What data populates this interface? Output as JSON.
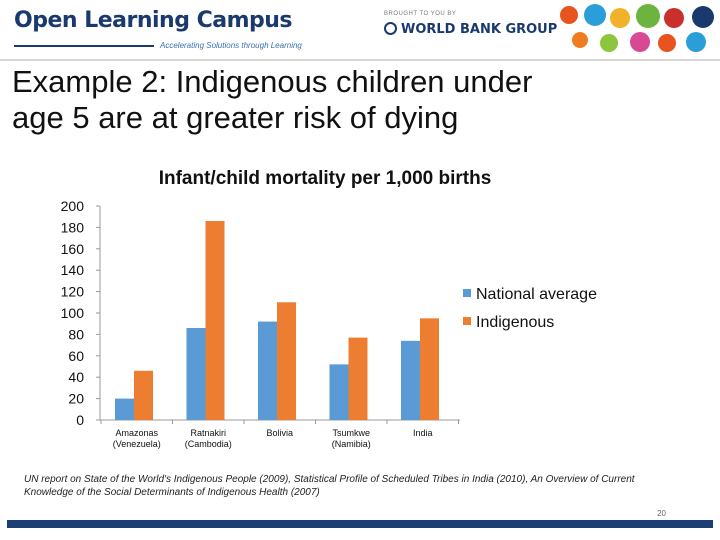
{
  "header": {
    "logo_title": "Open Learning Campus",
    "logo_tagline": "Accelerating Solutions through Learning",
    "brought_by": "BROUGHT TO YOU BY",
    "org_name": "WORLD BANK GROUP",
    "icon_colors": [
      "#e8541f",
      "#2a9ed8",
      "#f2b12a",
      "#6cb33f",
      "#c9302c",
      "#1a3a6e",
      "#f07c22",
      "#8cc63f",
      "#d64a94"
    ]
  },
  "slide": {
    "title_line1": "Example 2: Indigenous children under",
    "title_line2": "age 5 are at greater risk of dying"
  },
  "chart_data": {
    "type": "bar",
    "title": "Infant/child mortality per 1,000 births",
    "xlabel": "",
    "ylabel": "",
    "ylim": [
      0,
      200
    ],
    "yticks": [
      0,
      20,
      40,
      60,
      80,
      100,
      120,
      140,
      160,
      180,
      200
    ],
    "grid": false,
    "legend_position": "right",
    "categories": [
      [
        "Amazonas",
        "(Venezuela)"
      ],
      [
        "Ratnakiri",
        "(Cambodia)"
      ],
      [
        "Bolivia"
      ],
      [
        "Tsumkwe",
        "(Namibia)"
      ],
      [
        "India"
      ]
    ],
    "series": [
      {
        "name": "National average",
        "color": "#5b9bd5",
        "values": [
          20,
          86,
          92,
          52,
          74
        ]
      },
      {
        "name": "Indigenous",
        "color": "#ed7d31",
        "values": [
          46,
          186,
          110,
          77,
          95
        ]
      }
    ]
  },
  "source_text": "UN report on State of the World's Indigenous People (2009), Statistical Profile of Scheduled Tribes in India (2010), An Overview of Current Knowledge of the Social Determinants of Indigenous Health (2007)",
  "page_number": "20"
}
